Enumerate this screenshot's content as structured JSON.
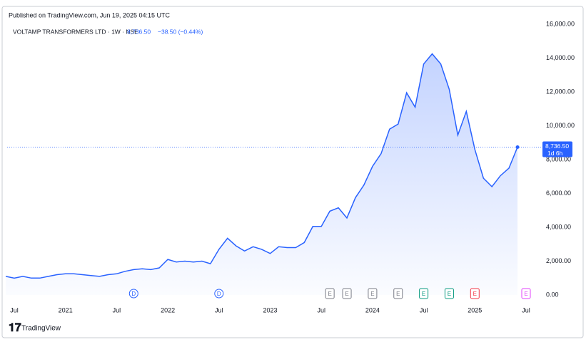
{
  "header": {
    "published": "Published on TradingView.com, Jun 19, 2025 04:15 UTC",
    "logo": "TradingView"
  },
  "chart_data": {
    "type": "area",
    "title": "VOLTAMP TRANSFORMERS LTD · 1W · NSE",
    "last_value": 8736.5,
    "last_value_label": "8,736.50",
    "change_label": "−38.50 (−0.44%)",
    "countdown": "1d 6h",
    "color": "#2962ff",
    "x": [
      "2020-06",
      "2020-07",
      "2020-08",
      "2020-09",
      "2020-10",
      "2020-11",
      "2020-12",
      "2021-01",
      "2021-02",
      "2021-03",
      "2021-04",
      "2021-05",
      "2021-06",
      "2021-07",
      "2021-08",
      "2021-09",
      "2021-10",
      "2021-11",
      "2021-12",
      "2022-01",
      "2022-02",
      "2022-03",
      "2022-04",
      "2022-05",
      "2022-06",
      "2022-07",
      "2022-08",
      "2022-09",
      "2022-10",
      "2022-11",
      "2022-12",
      "2023-01",
      "2023-02",
      "2023-03",
      "2023-04",
      "2023-05",
      "2023-06",
      "2023-07",
      "2023-08",
      "2023-09",
      "2023-10",
      "2023-11",
      "2023-12",
      "2024-01",
      "2024-02",
      "2024-03",
      "2024-04",
      "2024-05",
      "2024-06",
      "2024-07",
      "2024-08",
      "2024-09",
      "2024-10",
      "2024-11",
      "2024-12",
      "2025-01",
      "2025-02",
      "2025-03",
      "2025-04",
      "2025-05",
      "2025-06"
    ],
    "values": [
      1100,
      1000,
      1100,
      1000,
      1000,
      1100,
      1200,
      1250,
      1250,
      1200,
      1150,
      1100,
      1200,
      1250,
      1400,
      1500,
      1550,
      1500,
      1600,
      2100,
      1950,
      2000,
      1950,
      2000,
      1850,
      2700,
      3350,
      2900,
      2600,
      2850,
      2700,
      2450,
      2850,
      2800,
      2800,
      3100,
      4050,
      4050,
      4950,
      5150,
      4550,
      5750,
      6500,
      7600,
      8350,
      9800,
      10100,
      11950,
      11100,
      13650,
      14250,
      13650,
      12150,
      9450,
      10850,
      8600,
      6900,
      6400,
      7050,
      7500,
      8736.5
    ],
    "ylim": [
      0,
      16000
    ],
    "yticks": [
      {
        "value": 0,
        "label": "0.00"
      },
      {
        "value": 2000,
        "label": "2,000.00"
      },
      {
        "value": 4000,
        "label": "4,000.00"
      },
      {
        "value": 6000,
        "label": "6,000.00"
      },
      {
        "value": 8000,
        "label": "8,000.00"
      },
      {
        "value": 10000,
        "label": "10,000.00"
      },
      {
        "value": 12000,
        "label": "12,000.00"
      },
      {
        "value": 14000,
        "label": "14,000.00"
      },
      {
        "value": 16000,
        "label": "16,000.00"
      }
    ],
    "xticks": [
      {
        "value": "2020-07",
        "label": "Jul"
      },
      {
        "value": "2021-01",
        "label": "2021"
      },
      {
        "value": "2021-07",
        "label": "Jul"
      },
      {
        "value": "2022-01",
        "label": "2022"
      },
      {
        "value": "2022-07",
        "label": "Jul"
      },
      {
        "value": "2023-01",
        "label": "2023"
      },
      {
        "value": "2023-07",
        "label": "Jul"
      },
      {
        "value": "2024-01",
        "label": "2024"
      },
      {
        "value": "2024-07",
        "label": "Jul"
      },
      {
        "value": "2025-01",
        "label": "2025"
      },
      {
        "value": "2025-07",
        "label": "Jul"
      }
    ],
    "events": [
      {
        "x": "2021-09",
        "label": "D",
        "color": "#2962ff"
      },
      {
        "x": "2022-07",
        "label": "D",
        "color": "#2962ff"
      },
      {
        "x": "2023-08",
        "label": "E",
        "color": "#787b86"
      },
      {
        "x": "2023-10",
        "label": "E",
        "color": "#787b86"
      },
      {
        "x": "2024-01",
        "label": "E",
        "color": "#787b86"
      },
      {
        "x": "2024-04",
        "label": "E",
        "color": "#787b86"
      },
      {
        "x": "2024-07",
        "label": "E",
        "color": "#089981"
      },
      {
        "x": "2024-10",
        "label": "E",
        "color": "#089981"
      },
      {
        "x": "2025-01",
        "label": "E",
        "color": "#f23645"
      },
      {
        "x": "2025-07",
        "label": "E",
        "color": "#e040fb"
      }
    ]
  }
}
